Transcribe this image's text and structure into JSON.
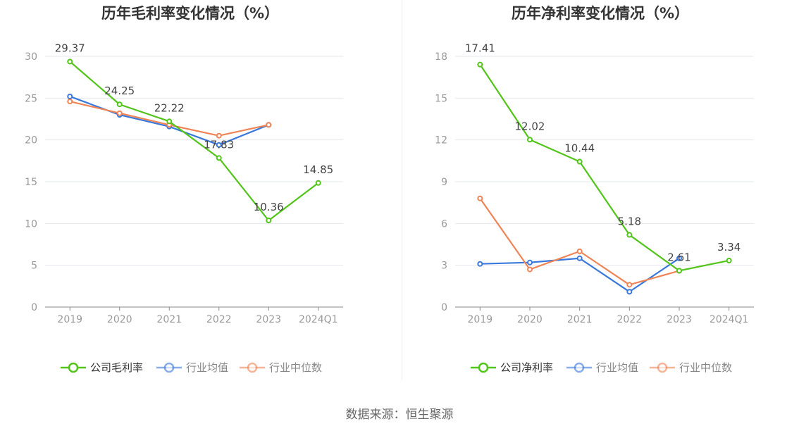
{
  "colors": {
    "company": "#52c41a",
    "industry_avg": "#3a78dc",
    "industry_median": "#ef8456",
    "grid": "#e5e7ee",
    "axis": "#888888",
    "tick_text": "#999999",
    "title": "#333333"
  },
  "source": "数据来源：恒生聚源",
  "chart_data": [
    {
      "type": "line",
      "title": "历年毛利率变化情况（%）",
      "categories": [
        "2019",
        "2020",
        "2021",
        "2022",
        "2023",
        "2024Q1"
      ],
      "ylim": [
        0,
        30
      ],
      "yticks": [
        "0",
        "5",
        "10",
        "15",
        "20",
        "25",
        "30"
      ],
      "legend_position": "bottom",
      "grid": true,
      "series": [
        {
          "name": "公司毛利率",
          "key": "company",
          "values": [
            29.37,
            24.25,
            22.22,
            17.83,
            10.36,
            14.85
          ],
          "labels": [
            "29.37",
            "24.25",
            "22.22",
            "17.83",
            "10.36",
            "14.85"
          ]
        },
        {
          "name": "行业均值",
          "key": "industry_avg",
          "values": [
            25.2,
            23.0,
            21.6,
            19.4,
            21.8,
            null
          ]
        },
        {
          "name": "行业中位数",
          "key": "industry_median",
          "values": [
            24.6,
            23.2,
            21.8,
            20.5,
            21.8,
            null
          ]
        }
      ]
    },
    {
      "type": "line",
      "title": "历年净利率变化情况（%）",
      "categories": [
        "2019",
        "2020",
        "2021",
        "2022",
        "2023",
        "2024Q1"
      ],
      "ylim": [
        0,
        18
      ],
      "yticks": [
        "0",
        "3",
        "6",
        "9",
        "12",
        "15",
        "18"
      ],
      "legend_position": "bottom",
      "grid": true,
      "series": [
        {
          "name": "公司净利率",
          "key": "company",
          "values": [
            17.41,
            12.02,
            10.44,
            5.18,
            2.61,
            3.34
          ],
          "labels": [
            "17.41",
            "12.02",
            "10.44",
            "5.18",
            "2.61",
            "3.34"
          ]
        },
        {
          "name": "行业均值",
          "key": "industry_avg",
          "values": [
            3.1,
            3.2,
            3.5,
            1.1,
            3.5,
            null
          ]
        },
        {
          "name": "行业中位数",
          "key": "industry_median",
          "values": [
            7.8,
            2.7,
            4.0,
            1.6,
            2.6,
            null
          ]
        }
      ]
    }
  ]
}
